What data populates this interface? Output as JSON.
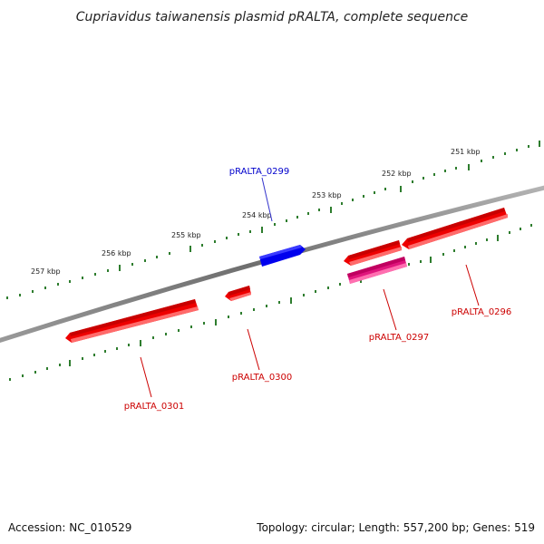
{
  "title": "Cupriavidus taiwanensis plasmid pRALTA, complete sequence",
  "footer": {
    "accession": "Accession: NC_010529",
    "summary": "Topology: circular; Length: 557,200 bp; Genes: 519"
  },
  "colors": {
    "backbone": "#808080",
    "tick": "#2e7d2e",
    "forward_gene": "#0000ee",
    "reverse_gene": "#ee0000",
    "highlight_gene": "#e0157d",
    "forward_label": "#0000cc",
    "reverse_label": "#cc0000"
  },
  "scale_labels": [
    "257 kbp",
    "256 kbp",
    "255 kbp",
    "254 kbp",
    "253 kbp",
    "252 kbp",
    "251 kbp"
  ],
  "genes": [
    {
      "id": "pRALTA_0299",
      "strand": "forward",
      "color": "forward_gene"
    },
    {
      "id": "pRALTA_0296",
      "strand": "reverse",
      "color": "reverse_gene"
    },
    {
      "id": "pRALTA_0297",
      "strand": "reverse",
      "color": "reverse_gene"
    },
    {
      "id": "pRALTA_0300",
      "strand": "reverse",
      "color": "reverse_gene"
    },
    {
      "id": "pRALTA_0301",
      "strand": "reverse",
      "color": "reverse_gene"
    }
  ]
}
